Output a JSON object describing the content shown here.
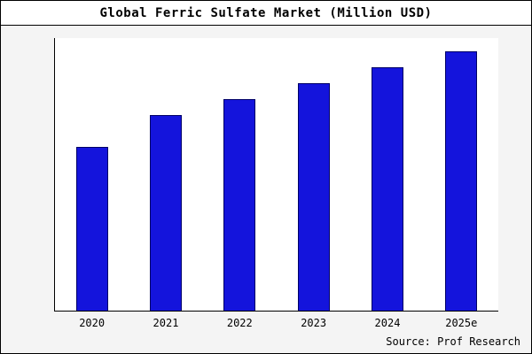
{
  "title": "Global Ferric Sulfate Market (Million USD)",
  "source": "Source: Prof Research",
  "colors": {
    "bar_fill": "#1414DC",
    "bar_edge": "#000066",
    "background_margin": "#f4f4f4",
    "plot_background": "#ffffff",
    "axis": "#000000"
  },
  "chart_data": {
    "type": "bar",
    "title": "Global Ferric Sulfate Market (Million USD)",
    "categories": [
      "2020",
      "2021",
      "2022",
      "2023",
      "2024",
      "2025e"
    ],
    "values": [
      62,
      74,
      80,
      86,
      92,
      98
    ],
    "xlabel": "",
    "ylabel": "",
    "ylim": [
      0,
      103
    ],
    "grid": false,
    "legend": false,
    "annotation": "Source: Prof Research"
  }
}
